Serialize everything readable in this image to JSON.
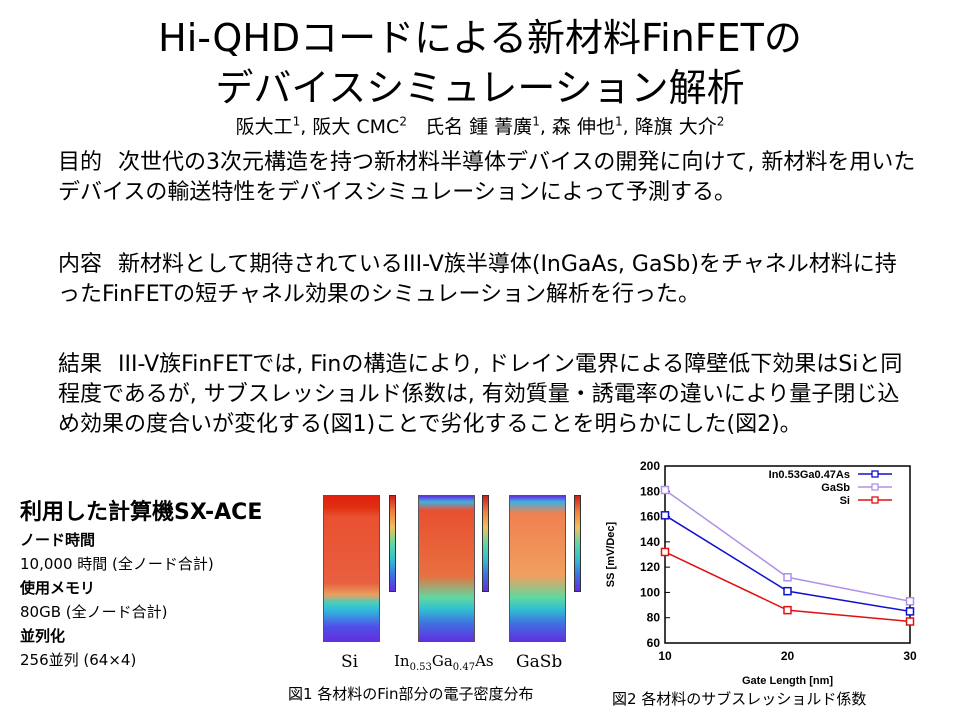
{
  "title": {
    "line1": "Hi-QHDコードによる新材料FinFETの",
    "line2": "デバイスシミュレーション解析"
  },
  "authors": {
    "aff1": "阪大工",
    "sup1": "1",
    "aff2": "阪大 CMC",
    "sup2": "2",
    "names": "氏名 鍾 菁廣",
    "s3": "1",
    "n2": "森 伸也",
    "s4": "1",
    "n3": "降旗 大介",
    "s5": "2"
  },
  "sections": [
    {
      "label": "目的",
      "text": "次世代の3次元構造を持つ新材料半導体デバイスの開発に向けて, 新材料を用いたデバイスの輸送特性をデバイスシミュレーションによって予測する。"
    },
    {
      "label": "内容",
      "text": "新材料として期待されているIII-V族半導体(InGaAs, GaSb)をチャネル材料に持ったFinFETの短チャネル効果のシミュレーション解析を行った。"
    },
    {
      "label": "結果",
      "text": "III-V族FinFETでは, Finの構造により, ドレイン電界による障壁低下効果はSiと同程度であるが, サブスレッショルド係数は, 有効質量・誘電率の違いにより量子閉じ込め効果の度合いが変化する(図1)ことで劣化することを明らかにした(図2)。"
    }
  ],
  "computer": {
    "title": "利用した計算機SX-ACE",
    "node_time_label": "ノード時間",
    "node_time": "10,000 時間 (全ノード合計)",
    "memory_label": "使用メモリ",
    "memory": "80GB (全ノード合計)",
    "parallel_label": "並列化",
    "parallel": "256並列 (64×4)"
  },
  "fig1": {
    "materials": [
      "Si",
      "In",
      "0.53",
      "Ga",
      "0.47",
      "As",
      "GaSb"
    ],
    "caption": "図1 各材料のFin部分の電子密度分布"
  },
  "fig2": {
    "caption": "図2 各材料のサブスレッショルド係数"
  },
  "chart_data": {
    "type": "line",
    "xlabel": "Gate Length [nm]",
    "ylabel": "SS [mV/Dec]",
    "x": [
      10,
      20,
      30
    ],
    "xlim": [
      10,
      30
    ],
    "ylim": [
      60,
      200
    ],
    "xticks": [
      10,
      20,
      30
    ],
    "yticks": [
      60,
      80,
      100,
      120,
      140,
      160,
      180,
      200
    ],
    "legend": "top-right",
    "series": [
      {
        "name": "In0.53Ga0.47As",
        "color": "#1010d0",
        "values": [
          161,
          101,
          85
        ]
      },
      {
        "name": "GaSb",
        "color": "#b090e8",
        "values": [
          181,
          112,
          93
        ]
      },
      {
        "name": "Si",
        "color": "#e01010",
        "values": [
          132,
          86,
          77
        ]
      }
    ]
  }
}
